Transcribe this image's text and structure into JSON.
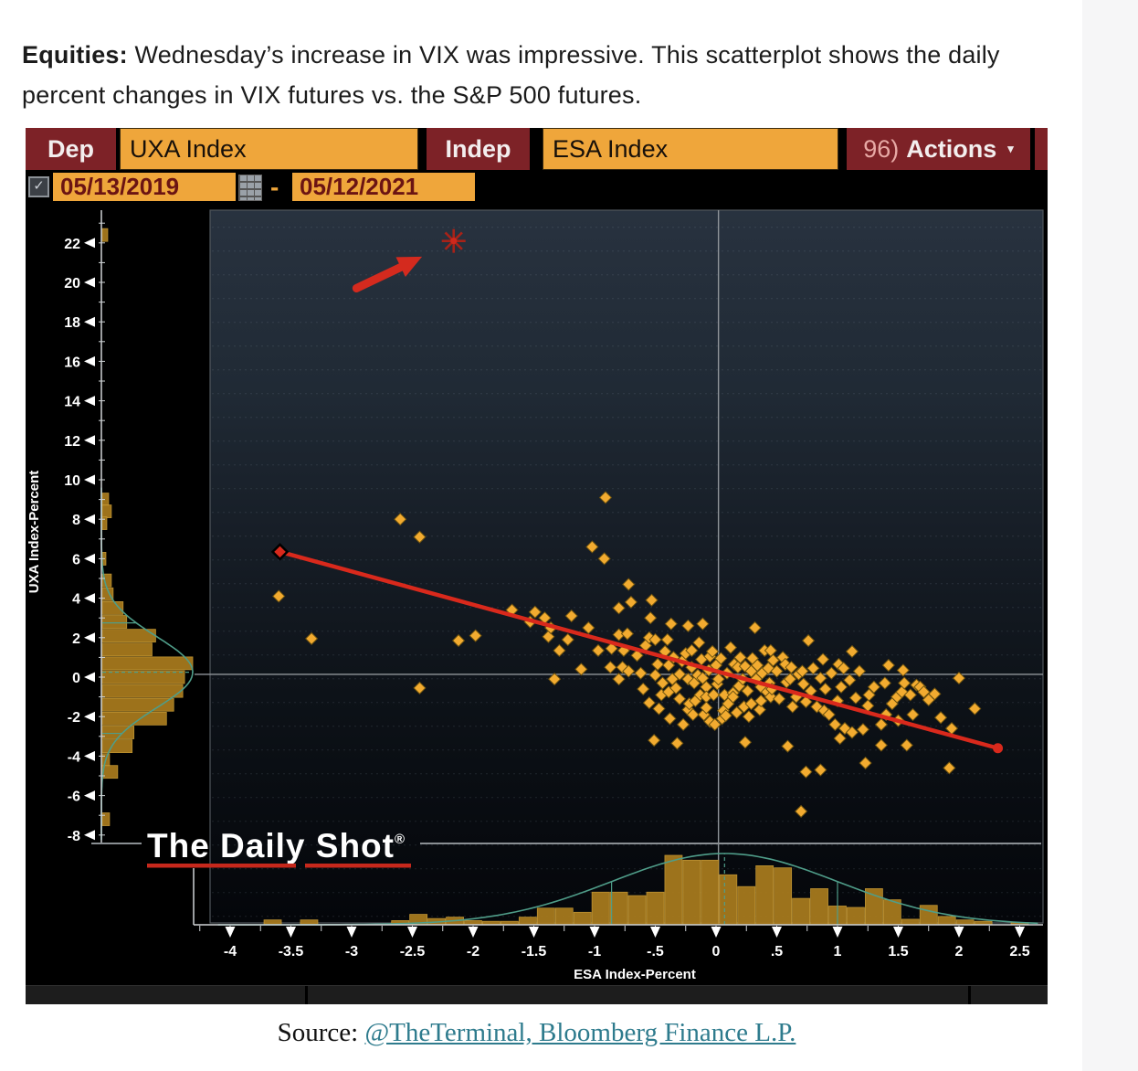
{
  "page": {
    "intro_bold": "Equities:",
    "intro_text": " Wednesday’s increase in VIX was impressive. This scatterplot shows the daily percent changes in VIX futures vs. the S&P 500 futures.",
    "source_label": "Source: ",
    "source_link": "@TheTerminal, Bloomberg Finance L.P."
  },
  "terminal": {
    "dep_label": "Dep",
    "dep_value": "UXA Index",
    "indep_label": "Indep",
    "indep_value": "ESA Index",
    "actions_num": "96)",
    "actions_label": "Actions",
    "actions_caret": "▾",
    "checkbox_glyph": "✓",
    "date_start": "05/13/2019",
    "date_separator": "-",
    "date_end": "05/12/2021"
  },
  "colors": {
    "terminal_red": "#7d2227",
    "field_orange": "#efa63b",
    "point_gold": "#f2ab30",
    "point_edge": "#6e5310",
    "hist_fill": "#a6791d",
    "hist_edge": "#c79a35",
    "regression_red": "#d9291c",
    "annotation_red": "#a82218",
    "teal_curve": "#4f9d89",
    "crosshair_gray": "#90959a",
    "axis_white": "#ffffff",
    "plot_border": "#51565c"
  },
  "chart_data": {
    "type": "scatter",
    "title": "",
    "xlabel": "ESA Index-Percent",
    "ylabel": "UXA Index-Percent",
    "xlim": [
      -4.15,
      2.7
    ],
    "ylim": [
      -8.8,
      23.6
    ],
    "grid": false,
    "watermark": "The Daily Shot",
    "watermark_reg": "®",
    "x_ticks": {
      "values": [
        -4,
        -3.5,
        -3,
        -2.5,
        -2,
        -1.5,
        -1,
        -0.5,
        0,
        0.5,
        1,
        1.5,
        2,
        2.5
      ],
      "labels": [
        "-4",
        "-3.5",
        "-3",
        "-2.5",
        "-2",
        "-1.5",
        "-1",
        "-.5",
        "0",
        ".5",
        "1",
        "1.5",
        "2",
        "2.5"
      ]
    },
    "y_ticks": [
      22,
      20,
      18,
      16,
      14,
      12,
      10,
      8,
      6,
      4,
      2,
      0,
      -2,
      -4,
      -6,
      -8
    ],
    "crosshair": {
      "x": 0.02,
      "y": 0.14
    },
    "regression_line": {
      "x1": -3.59,
      "y1": 6.35,
      "x2": 2.32,
      "y2": -3.6
    },
    "highlight_point": {
      "x": -2.16,
      "y": 22.1
    },
    "arrow": {
      "x1": -2.96,
      "y1": 19.7,
      "x2": -2.42,
      "y2": 21.3
    },
    "points": [
      [
        -3.6,
        4.1
      ],
      [
        -3.33,
        1.95
      ],
      [
        -2.6,
        8.0
      ],
      [
        -2.44,
        7.1
      ],
      [
        -2.44,
        -0.55
      ],
      [
        -2.12,
        1.85
      ],
      [
        -1.98,
        2.1
      ],
      [
        -1.68,
        3.4
      ],
      [
        -1.53,
        2.8
      ],
      [
        -1.49,
        3.3
      ],
      [
        -1.41,
        3.0
      ],
      [
        -1.38,
        2.05
      ],
      [
        -1.36,
        2.5
      ],
      [
        -1.33,
        -0.1
      ],
      [
        -1.29,
        1.35
      ],
      [
        -1.22,
        1.9
      ],
      [
        -1.19,
        3.1
      ],
      [
        -1.11,
        0.4
      ],
      [
        -1.05,
        2.5
      ],
      [
        -1.02,
        6.6
      ],
      [
        -0.97,
        1.35
      ],
      [
        -0.92,
        6.0
      ],
      [
        -0.91,
        9.1
      ],
      [
        -0.87,
        0.5
      ],
      [
        -0.86,
        1.45
      ],
      [
        -0.8,
        3.5
      ],
      [
        -0.8,
        2.15
      ],
      [
        -0.8,
        -0.1
      ],
      [
        -0.77,
        0.5
      ],
      [
        -0.76,
        1.35
      ],
      [
        -0.73,
        2.2
      ],
      [
        -0.72,
        4.7
      ],
      [
        -0.72,
        0.3
      ],
      [
        -0.7,
        3.8
      ],
      [
        -0.65,
        1.1
      ],
      [
        -0.62,
        0.2
      ],
      [
        -0.6,
        -0.6
      ],
      [
        -0.58,
        1.6
      ],
      [
        -0.55,
        2.0
      ],
      [
        -0.55,
        -1.3
      ],
      [
        -0.54,
        3.0
      ],
      [
        -0.53,
        3.9
      ],
      [
        -0.51,
        -3.2
      ],
      [
        -0.5,
        1.9
      ],
      [
        -0.5,
        0.1
      ],
      [
        -0.48,
        0.65
      ],
      [
        -0.47,
        -1.6
      ],
      [
        -0.45,
        -0.9
      ],
      [
        -0.44,
        -0.3
      ],
      [
        -0.42,
        1.3
      ],
      [
        -0.4,
        1.9
      ],
      [
        -0.39,
        0.6
      ],
      [
        -0.39,
        -0.75
      ],
      [
        -0.38,
        -2.1
      ],
      [
        -0.37,
        2.7
      ],
      [
        -0.36,
        -0.1
      ],
      [
        -0.35,
        1.0
      ],
      [
        -0.33,
        -0.55
      ],
      [
        -0.32,
        -3.35
      ],
      [
        -0.3,
        0.15
      ],
      [
        -0.3,
        -1.1
      ],
      [
        -0.28,
        0.8
      ],
      [
        -0.27,
        -2.4
      ],
      [
        -0.25,
        1.2
      ],
      [
        -0.23,
        2.6
      ],
      [
        -0.23,
        -0.1
      ],
      [
        -0.23,
        -1.65
      ],
      [
        -0.22,
        -1.35
      ],
      [
        -0.2,
        1.35
      ],
      [
        -0.2,
        0.5
      ],
      [
        -0.19,
        -1.9
      ],
      [
        -0.18,
        -0.3
      ],
      [
        -0.17,
        -1.2
      ],
      [
        -0.15,
        0.1
      ],
      [
        -0.14,
        1.75
      ],
      [
        -0.13,
        -0.9
      ],
      [
        -0.12,
        0.9
      ],
      [
        -0.11,
        2.7
      ],
      [
        -0.11,
        -0.05
      ],
      [
        -0.1,
        -1.9
      ],
      [
        -0.08,
        -0.5
      ],
      [
        -0.08,
        -1.0
      ],
      [
        -0.08,
        -1.55
      ],
      [
        -0.06,
        0.35
      ],
      [
        -0.05,
        1.05
      ],
      [
        -0.05,
        -2.25
      ],
      [
        -0.03,
        1.3
      ],
      [
        -0.02,
        -0.9
      ],
      [
        -0.01,
        -2.4
      ],
      [
        0.0,
        0.6
      ],
      [
        0.01,
        -0.35
      ],
      [
        0.02,
        -0.1
      ],
      [
        0.04,
        0.95
      ],
      [
        0.05,
        -2.1
      ],
      [
        0.06,
        -1.7
      ],
      [
        0.07,
        -0.9
      ],
      [
        0.08,
        -1.95
      ],
      [
        0.09,
        0.2
      ],
      [
        0.1,
        -1.35
      ],
      [
        0.12,
        1.5
      ],
      [
        0.14,
        -0.8
      ],
      [
        0.14,
        -1.0
      ],
      [
        0.15,
        0.65
      ],
      [
        0.17,
        -1.8
      ],
      [
        0.18,
        0.5
      ],
      [
        0.19,
        -0.45
      ],
      [
        0.2,
        1.0
      ],
      [
        0.22,
        -0.1
      ],
      [
        0.23,
        -1.5
      ],
      [
        0.24,
        0.55
      ],
      [
        0.24,
        -3.3
      ],
      [
        0.26,
        -0.7
      ],
      [
        0.27,
        -2.0
      ],
      [
        0.29,
        0.3
      ],
      [
        0.29,
        -1.35
      ],
      [
        0.3,
        0.95
      ],
      [
        0.32,
        2.5
      ],
      [
        0.33,
        -0.1
      ],
      [
        0.34,
        0.6
      ],
      [
        0.36,
        -1.65
      ],
      [
        0.37,
        -0.5
      ],
      [
        0.37,
        -1.2
      ],
      [
        0.38,
        0.2
      ],
      [
        0.4,
        1.35
      ],
      [
        0.42,
        -0.75
      ],
      [
        0.43,
        0.45
      ],
      [
        0.44,
        -0.3
      ],
      [
        0.45,
        1.35
      ],
      [
        0.45,
        -1.0
      ],
      [
        0.46,
        -0.6
      ],
      [
        0.47,
        0.85
      ],
      [
        0.5,
        0.3
      ],
      [
        0.52,
        -1.1
      ],
      [
        0.55,
        1.0
      ],
      [
        0.57,
        0.65
      ],
      [
        0.58,
        -0.25
      ],
      [
        0.59,
        -3.5
      ],
      [
        0.61,
        -0.1
      ],
      [
        0.62,
        0.5
      ],
      [
        0.63,
        -1.5
      ],
      [
        0.66,
        -1.0
      ],
      [
        0.68,
        0.15
      ],
      [
        0.7,
        -6.8
      ],
      [
        0.71,
        0.3
      ],
      [
        0.72,
        -0.35
      ],
      [
        0.74,
        -1.25
      ],
      [
        0.74,
        -4.8
      ],
      [
        0.76,
        1.85
      ],
      [
        0.78,
        -0.7
      ],
      [
        0.8,
        0.45
      ],
      [
        0.83,
        -1.5
      ],
      [
        0.86,
        -0.05
      ],
      [
        0.86,
        -4.7
      ],
      [
        0.88,
        0.9
      ],
      [
        0.89,
        -1.7
      ],
      [
        0.9,
        -0.6
      ],
      [
        0.93,
        -1.9
      ],
      [
        0.95,
        0.2
      ],
      [
        0.98,
        -2.4
      ],
      [
        1.0,
        -1.2
      ],
      [
        1.01,
        0.65
      ],
      [
        1.02,
        -3.1
      ],
      [
        1.03,
        -0.5
      ],
      [
        1.05,
        0.45
      ],
      [
        1.06,
        -2.6
      ],
      [
        1.1,
        -0.15
      ],
      [
        1.12,
        1.3
      ],
      [
        1.12,
        -2.8
      ],
      [
        1.15,
        -1.05
      ],
      [
        1.18,
        0.3
      ],
      [
        1.21,
        -2.65
      ],
      [
        1.23,
        -4.35
      ],
      [
        1.25,
        -1.45
      ],
      [
        1.26,
        -0.9
      ],
      [
        1.3,
        -0.5
      ],
      [
        1.36,
        -2.4
      ],
      [
        1.36,
        -3.45
      ],
      [
        1.39,
        -0.3
      ],
      [
        1.4,
        -1.9
      ],
      [
        1.42,
        0.6
      ],
      [
        1.45,
        -1.35
      ],
      [
        1.49,
        -1.0
      ],
      [
        1.5,
        -2.2
      ],
      [
        1.53,
        -0.75
      ],
      [
        1.54,
        0.35
      ],
      [
        1.55,
        -0.3
      ],
      [
        1.57,
        -3.45
      ],
      [
        1.6,
        -0.9
      ],
      [
        1.62,
        -1.9
      ],
      [
        1.65,
        -0.4
      ],
      [
        1.68,
        -0.5
      ],
      [
        1.71,
        -0.75
      ],
      [
        1.75,
        -1.15
      ],
      [
        1.8,
        -0.85
      ],
      [
        1.85,
        -2.05
      ],
      [
        1.92,
        -4.6
      ],
      [
        1.94,
        -2.6
      ],
      [
        2.0,
        -0.05
      ],
      [
        2.13,
        -1.6
      ]
    ],
    "left_histogram": {
      "orientation": "horizontal",
      "bin_centers": [
        22.4,
        9.0,
        8.4,
        7.8,
        6.0,
        4.9,
        4.2,
        3.5,
        2.8,
        2.1,
        1.4,
        0.7,
        0.0,
        -0.7,
        -1.4,
        -2.1,
        -2.8,
        -3.5,
        -4.2,
        -4.8,
        -7.2
      ],
      "lengths": [
        0.06,
        0.07,
        0.1,
        0.05,
        0.04,
        0.1,
        0.12,
        0.23,
        0.27,
        0.59,
        0.55,
        1.0,
        0.91,
        0.89,
        0.79,
        0.71,
        0.35,
        0.33,
        0.08,
        0.17,
        0.08
      ],
      "curve": {
        "mu": 0.25,
        "sigma": 1.8
      }
    },
    "bottom_histogram": {
      "orientation": "vertical",
      "bin_centers": [
        -3.65,
        -3.35,
        -2.6,
        -2.45,
        -2.3,
        -2.15,
        -2.0,
        -1.85,
        -1.7,
        -1.55,
        -1.4,
        -1.25,
        -1.1,
        -0.95,
        -0.8,
        -0.65,
        -0.5,
        -0.35,
        -0.2,
        -0.05,
        0.1,
        0.25,
        0.4,
        0.55,
        0.7,
        0.85,
        1.0,
        1.15,
        1.3,
        1.45,
        1.6,
        1.75,
        1.9,
        2.05,
        2.2,
        2.5
      ],
      "heights": [
        0.07,
        0.07,
        0.06,
        0.15,
        0.09,
        0.11,
        0.06,
        0.05,
        0.05,
        0.11,
        0.24,
        0.24,
        0.18,
        0.47,
        0.47,
        0.42,
        0.47,
        1.0,
        0.93,
        0.93,
        0.72,
        0.55,
        0.85,
        0.82,
        0.38,
        0.52,
        0.27,
        0.25,
        0.52,
        0.36,
        0.08,
        0.28,
        0.12,
        0.07,
        0.05,
        0.03
      ],
      "curve": {
        "mu": 0.07,
        "sigma": 0.93
      }
    }
  }
}
